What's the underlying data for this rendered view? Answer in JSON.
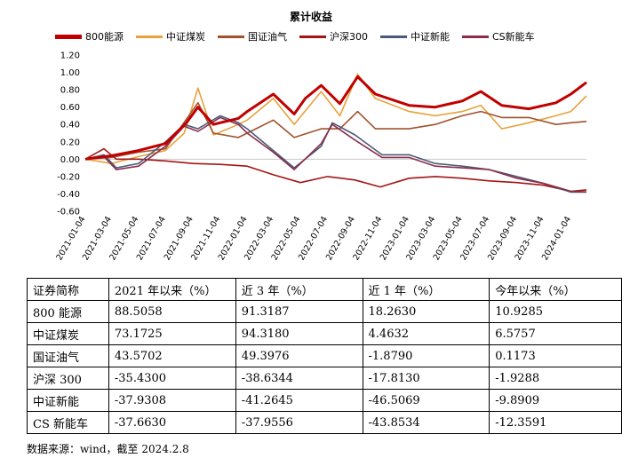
{
  "chart_data": {
    "type": "line",
    "title": "累计收益",
    "ylim": [
      -0.6,
      1.2
    ],
    "yticks": [
      "1.20",
      "1.00",
      "0.80",
      "0.60",
      "0.40",
      "0.20",
      "0.00",
      "-0.20",
      "-0.40",
      "-0.60"
    ],
    "x_range": [
      "2021-01-04",
      "2024-02-08"
    ],
    "xticks": [
      "2021-01-04",
      "2021-03-04",
      "2021-05-04",
      "2021-07-04",
      "2021-09-04",
      "2021-11-04",
      "2022-01-04",
      "2022-03-04",
      "2022-05-04",
      "2022-07-04",
      "2022-09-04",
      "2022-11-04",
      "2023-01-04",
      "2023-03-04",
      "2023-05-04",
      "2023-07-04",
      "2023-09-04",
      "2023-11-04",
      "2024-01-04"
    ],
    "legend_position": "top",
    "grid": false,
    "series": [
      {
        "name": "800能源",
        "color": "#c00000",
        "bold": true,
        "points": [
          [
            "2021-01-04",
            0.0
          ],
          [
            "2021-03-04",
            0.04
          ],
          [
            "2021-05-04",
            0.1
          ],
          [
            "2021-07-04",
            0.18
          ],
          [
            "2021-08-20",
            0.42
          ],
          [
            "2021-09-15",
            0.6
          ],
          [
            "2021-10-20",
            0.4
          ],
          [
            "2021-12-15",
            0.47
          ],
          [
            "2022-01-04",
            0.55
          ],
          [
            "2022-03-04",
            0.75
          ],
          [
            "2022-04-20",
            0.52
          ],
          [
            "2022-05-15",
            0.7
          ],
          [
            "2022-06-20",
            0.85
          ],
          [
            "2022-08-01",
            0.64
          ],
          [
            "2022-09-10",
            0.95
          ],
          [
            "2022-10-20",
            0.75
          ],
          [
            "2023-01-04",
            0.62
          ],
          [
            "2023-03-04",
            0.6
          ],
          [
            "2023-05-04",
            0.67
          ],
          [
            "2023-06-15",
            0.78
          ],
          [
            "2023-08-01",
            0.62
          ],
          [
            "2023-10-01",
            0.58
          ],
          [
            "2023-12-01",
            0.65
          ],
          [
            "2024-01-04",
            0.75
          ],
          [
            "2024-02-08",
            0.885
          ]
        ]
      },
      {
        "name": "中证煤炭",
        "color": "#e6a23c",
        "bold": false,
        "points": [
          [
            "2021-01-04",
            0.0
          ],
          [
            "2021-03-04",
            -0.05
          ],
          [
            "2021-05-04",
            0.03
          ],
          [
            "2021-07-04",
            0.1
          ],
          [
            "2021-08-15",
            0.3
          ],
          [
            "2021-09-15",
            0.82
          ],
          [
            "2021-10-20",
            0.28
          ],
          [
            "2021-12-15",
            0.4
          ],
          [
            "2022-01-04",
            0.45
          ],
          [
            "2022-03-04",
            0.7
          ],
          [
            "2022-04-20",
            0.4
          ],
          [
            "2022-06-20",
            0.78
          ],
          [
            "2022-08-01",
            0.5
          ],
          [
            "2022-09-10",
            0.98
          ],
          [
            "2022-10-20",
            0.7
          ],
          [
            "2023-01-04",
            0.55
          ],
          [
            "2023-03-04",
            0.5
          ],
          [
            "2023-05-04",
            0.55
          ],
          [
            "2023-06-15",
            0.62
          ],
          [
            "2023-08-01",
            0.35
          ],
          [
            "2023-10-01",
            0.42
          ],
          [
            "2023-12-01",
            0.5
          ],
          [
            "2024-01-04",
            0.55
          ],
          [
            "2024-02-08",
            0.73
          ]
        ]
      },
      {
        "name": "国证油气",
        "color": "#a0522d",
        "bold": false,
        "points": [
          [
            "2021-01-04",
            0.0
          ],
          [
            "2021-03-04",
            0.02
          ],
          [
            "2021-05-04",
            0.08
          ],
          [
            "2021-07-04",
            0.12
          ],
          [
            "2021-09-15",
            0.65
          ],
          [
            "2021-10-20",
            0.3
          ],
          [
            "2021-12-15",
            0.25
          ],
          [
            "2022-01-04",
            0.3
          ],
          [
            "2022-03-04",
            0.45
          ],
          [
            "2022-04-20",
            0.25
          ],
          [
            "2022-06-20",
            0.35
          ],
          [
            "2022-08-01",
            0.35
          ],
          [
            "2022-09-10",
            0.55
          ],
          [
            "2022-10-20",
            0.35
          ],
          [
            "2023-01-04",
            0.35
          ],
          [
            "2023-03-04",
            0.4
          ],
          [
            "2023-05-04",
            0.5
          ],
          [
            "2023-06-15",
            0.55
          ],
          [
            "2023-08-01",
            0.48
          ],
          [
            "2023-10-01",
            0.48
          ],
          [
            "2023-12-01",
            0.4
          ],
          [
            "2024-01-04",
            0.42
          ],
          [
            "2024-02-08",
            0.435
          ]
        ]
      },
      {
        "name": "沪深300",
        "color": "#a31515",
        "bold": false,
        "points": [
          [
            "2021-01-04",
            0.0
          ],
          [
            "2021-02-15",
            0.12
          ],
          [
            "2021-03-15",
            0.0
          ],
          [
            "2021-05-04",
            0.0
          ],
          [
            "2021-07-04",
            -0.02
          ],
          [
            "2021-09-04",
            -0.05
          ],
          [
            "2021-11-04",
            -0.06
          ],
          [
            "2022-01-04",
            -0.08
          ],
          [
            "2022-03-04",
            -0.18
          ],
          [
            "2022-05-04",
            -0.27
          ],
          [
            "2022-07-04",
            -0.2
          ],
          [
            "2022-09-04",
            -0.24
          ],
          [
            "2022-10-31",
            -0.32
          ],
          [
            "2023-01-04",
            -0.22
          ],
          [
            "2023-03-04",
            -0.2
          ],
          [
            "2023-05-04",
            -0.22
          ],
          [
            "2023-07-04",
            -0.25
          ],
          [
            "2023-09-04",
            -0.27
          ],
          [
            "2023-11-04",
            -0.3
          ],
          [
            "2024-01-04",
            -0.37
          ],
          [
            "2024-02-08",
            -0.354
          ]
        ]
      },
      {
        "name": "中证新能",
        "color": "#4a5a7a",
        "bold": false,
        "points": [
          [
            "2021-01-04",
            0.0
          ],
          [
            "2021-02-15",
            0.05
          ],
          [
            "2021-03-15",
            -0.1
          ],
          [
            "2021-05-04",
            -0.05
          ],
          [
            "2021-07-04",
            0.2
          ],
          [
            "2021-08-15",
            0.4
          ],
          [
            "2021-09-15",
            0.35
          ],
          [
            "2021-11-04",
            0.5
          ],
          [
            "2021-12-15",
            0.42
          ],
          [
            "2022-01-04",
            0.35
          ],
          [
            "2022-03-04",
            0.1
          ],
          [
            "2022-04-20",
            -0.1
          ],
          [
            "2022-06-20",
            0.15
          ],
          [
            "2022-07-15",
            0.42
          ],
          [
            "2022-09-04",
            0.28
          ],
          [
            "2022-11-04",
            0.05
          ],
          [
            "2023-01-04",
            0.05
          ],
          [
            "2023-03-04",
            -0.05
          ],
          [
            "2023-05-04",
            -0.08
          ],
          [
            "2023-07-04",
            -0.12
          ],
          [
            "2023-09-04",
            -0.2
          ],
          [
            "2023-11-04",
            -0.28
          ],
          [
            "2024-01-04",
            -0.38
          ],
          [
            "2024-02-08",
            -0.379
          ]
        ]
      },
      {
        "name": "CS新能车",
        "color": "#8b2e4a",
        "bold": false,
        "points": [
          [
            "2021-01-04",
            0.0
          ],
          [
            "2021-02-15",
            0.03
          ],
          [
            "2021-03-15",
            -0.12
          ],
          [
            "2021-05-04",
            -0.08
          ],
          [
            "2021-07-04",
            0.15
          ],
          [
            "2021-08-15",
            0.38
          ],
          [
            "2021-09-15",
            0.32
          ],
          [
            "2021-11-04",
            0.48
          ],
          [
            "2021-12-15",
            0.4
          ],
          [
            "2022-01-04",
            0.3
          ],
          [
            "2022-03-04",
            0.08
          ],
          [
            "2022-04-20",
            -0.12
          ],
          [
            "2022-06-20",
            0.18
          ],
          [
            "2022-07-15",
            0.4
          ],
          [
            "2022-09-04",
            0.22
          ],
          [
            "2022-11-04",
            0.02
          ],
          [
            "2023-01-04",
            0.02
          ],
          [
            "2023-03-04",
            -0.08
          ],
          [
            "2023-05-04",
            -0.1
          ],
          [
            "2023-07-04",
            -0.12
          ],
          [
            "2023-09-04",
            -0.22
          ],
          [
            "2023-11-04",
            -0.28
          ],
          [
            "2024-01-04",
            -0.37
          ],
          [
            "2024-02-08",
            -0.377
          ]
        ]
      }
    ]
  },
  "table": {
    "headers": [
      "证券简称",
      "2021 年以来（%）",
      "近 3 年（%）",
      "近 1 年（%）",
      "今年以来（%）"
    ],
    "rows": [
      [
        "800 能源",
        "88.5058",
        "91.3187",
        "18.2630",
        "10.9285"
      ],
      [
        "中证煤炭",
        "73.1725",
        "94.3180",
        "4.4632",
        "6.5757"
      ],
      [
        "国证油气",
        "43.5702",
        "49.3976",
        "-1.8790",
        "0.1173"
      ],
      [
        "沪深 300",
        "-35.4300",
        "-38.6344",
        "-17.8130",
        "-1.9288"
      ],
      [
        "中证新能",
        "-37.9308",
        "-41.2645",
        "-46.5069",
        "-9.8909"
      ],
      [
        "CS 新能车",
        "-37.6630",
        "-37.9556",
        "-43.8534",
        "-12.3591"
      ]
    ]
  },
  "source": "数据来源：wind，截至 2024.2.8"
}
